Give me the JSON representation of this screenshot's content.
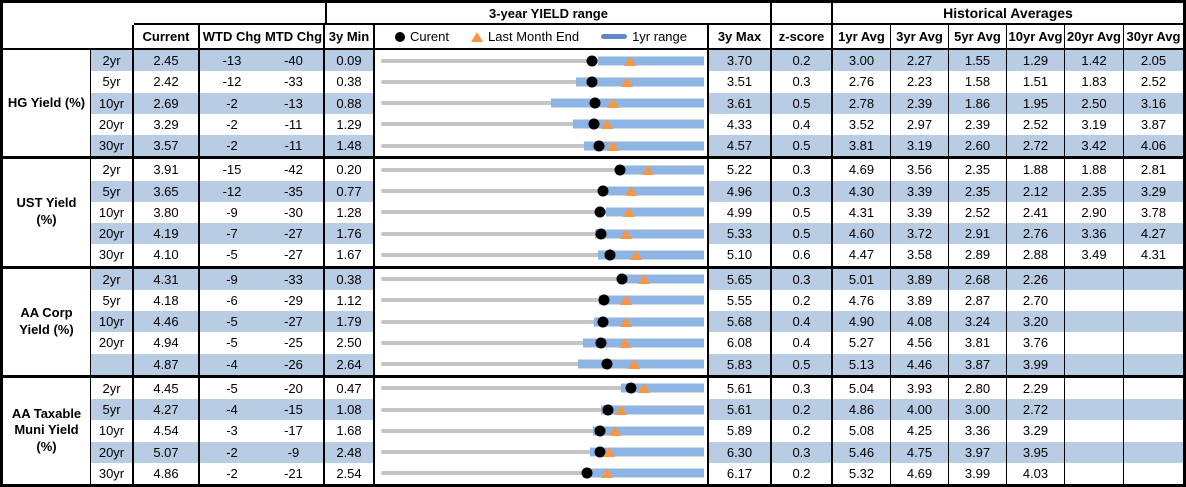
{
  "chart_data": {
    "type": "table",
    "title": "3-year YIELD range",
    "hist_title": "Historical Averages",
    "legend": {
      "current": "Curent",
      "last_month": "Last Month End",
      "range": "1yr range"
    },
    "columns": {
      "current": "Current",
      "wtd": "WTD Chg",
      "mtd": "MTD Chg",
      "min": "3y Min",
      "max": "3y Max",
      "z": "z-score",
      "avgs": [
        "1yr Avg",
        "3yr Avg",
        "5yr Avg",
        "10yr Avg",
        "20yr Avg",
        "30yr Avg"
      ]
    },
    "colors": {
      "row_shade": "#B8CCE4",
      "bar_blue": "#8EB4E3",
      "legend_bar_blue": "#5B8AC6",
      "marker_orange": "#F79646",
      "track_gray": "#C4C4C4",
      "dot_black": "#000000"
    },
    "sections": [
      {
        "label": "HG Yield (%)",
        "rows": [
          {
            "tenor": "2yr",
            "current": 2.45,
            "wtd": -13,
            "mtd": -40,
            "min": 0.09,
            "max": 3.7,
            "z": "0.2",
            "lme": 2.87,
            "yr_lo": 2.52,
            "yr_hi": 3.7,
            "avgs": [
              "3.00",
              "2.27",
              "1.55",
              "1.29",
              "1.42",
              "2.05"
            ]
          },
          {
            "tenor": "5yr",
            "current": 2.42,
            "wtd": -12,
            "mtd": -33,
            "min": 0.38,
            "max": 3.51,
            "z": "0.3",
            "lme": 2.76,
            "yr_lo": 2.27,
            "yr_hi": 3.51,
            "avgs": [
              "2.76",
              "2.23",
              "1.58",
              "1.51",
              "1.83",
              "2.52"
            ]
          },
          {
            "tenor": "10yr",
            "current": 2.69,
            "wtd": -2,
            "mtd": -13,
            "min": 0.88,
            "max": 3.61,
            "z": "0.5",
            "lme": 2.84,
            "yr_lo": 2.32,
            "yr_hi": 3.61,
            "avgs": [
              "2.78",
              "2.39",
              "1.86",
              "1.95",
              "2.50",
              "3.16"
            ]
          },
          {
            "tenor": "20yr",
            "current": 3.29,
            "wtd": -2,
            "mtd": -11,
            "min": 1.29,
            "max": 4.33,
            "z": "0.4",
            "lme": 3.42,
            "yr_lo": 3.1,
            "yr_hi": 4.33,
            "avgs": [
              "3.52",
              "2.97",
              "2.39",
              "2.52",
              "3.19",
              "3.87"
            ]
          },
          {
            "tenor": "30yr",
            "current": 3.57,
            "wtd": -2,
            "mtd": -11,
            "min": 1.48,
            "max": 4.57,
            "z": "0.5",
            "lme": 3.7,
            "yr_lo": 3.42,
            "yr_hi": 4.57,
            "avgs": [
              "3.81",
              "3.19",
              "2.60",
              "2.72",
              "3.42",
              "4.06"
            ]
          }
        ]
      },
      {
        "label": "UST Yield (%)",
        "rows": [
          {
            "tenor": "2yr",
            "current": 3.91,
            "wtd": -15,
            "mtd": -42,
            "min": 0.2,
            "max": 5.22,
            "z": "0.3",
            "lme": 4.35,
            "yr_lo": 3.86,
            "yr_hi": 5.22,
            "avgs": [
              "4.69",
              "3.56",
              "2.35",
              "1.88",
              "1.88",
              "2.81"
            ]
          },
          {
            "tenor": "5yr",
            "current": 3.65,
            "wtd": -12,
            "mtd": -35,
            "min": 0.77,
            "max": 4.96,
            "z": "0.3",
            "lme": 4.01,
            "yr_lo": 3.7,
            "yr_hi": 4.96,
            "avgs": [
              "4.30",
              "3.39",
              "2.35",
              "2.12",
              "2.35",
              "3.29"
            ]
          },
          {
            "tenor": "10yr",
            "current": 3.8,
            "wtd": -9,
            "mtd": -30,
            "min": 1.28,
            "max": 4.99,
            "z": "0.5",
            "lme": 4.13,
            "yr_lo": 3.86,
            "yr_hi": 4.99,
            "avgs": [
              "4.31",
              "3.39",
              "2.52",
              "2.41",
              "2.90",
              "3.78"
            ]
          },
          {
            "tenor": "20yr",
            "current": 4.19,
            "wtd": -7,
            "mtd": -27,
            "min": 1.76,
            "max": 5.33,
            "z": "0.5",
            "lme": 4.47,
            "yr_lo": 4.12,
            "yr_hi": 5.33,
            "avgs": [
              "4.60",
              "3.72",
              "2.91",
              "2.76",
              "3.36",
              "4.27"
            ]
          },
          {
            "tenor": "30yr",
            "current": 4.1,
            "wtd": -5,
            "mtd": -27,
            "min": 1.67,
            "max": 5.1,
            "z": "0.6",
            "lme": 4.38,
            "yr_lo": 3.97,
            "yr_hi": 5.1,
            "avgs": [
              "4.47",
              "3.58",
              "2.89",
              "2.88",
              "3.49",
              "4.31"
            ]
          }
        ]
      },
      {
        "label": "AA Corp Yield (%)",
        "rows": [
          {
            "tenor": "2yr",
            "current": 4.31,
            "wtd": -9,
            "mtd": -33,
            "min": 0.38,
            "max": 5.65,
            "z": "0.3",
            "lme": 4.67,
            "yr_lo": 4.25,
            "yr_hi": 5.65,
            "avgs": [
              "5.01",
              "3.89",
              "2.68",
              "2.26",
              "",
              ""
            ]
          },
          {
            "tenor": "5yr",
            "current": 4.18,
            "wtd": -6,
            "mtd": -29,
            "min": 1.12,
            "max": 5.55,
            "z": "0.2",
            "lme": 4.48,
            "yr_lo": 4.11,
            "yr_hi": 5.55,
            "avgs": [
              "4.76",
              "3.89",
              "2.87",
              "2.70",
              "",
              ""
            ]
          },
          {
            "tenor": "10yr",
            "current": 4.46,
            "wtd": -5,
            "mtd": -27,
            "min": 1.79,
            "max": 5.68,
            "z": "0.4",
            "lme": 4.74,
            "yr_lo": 4.35,
            "yr_hi": 5.68,
            "avgs": [
              "4.90",
              "4.08",
              "3.24",
              "3.20",
              "",
              ""
            ]
          },
          {
            "tenor": "20yr",
            "current": 4.94,
            "wtd": -5,
            "mtd": -25,
            "min": 2.5,
            "max": 6.08,
            "z": "0.4",
            "lme": 5.2,
            "yr_lo": 4.74,
            "yr_hi": 6.08,
            "avgs": [
              "5.27",
              "4.56",
              "3.81",
              "3.76",
              "",
              ""
            ]
          },
          {
            "tenor": "",
            "current": 4.87,
            "wtd": -4,
            "mtd": -26,
            "min": 2.64,
            "max": 5.83,
            "z": "0.5",
            "lme": 5.14,
            "yr_lo": 4.59,
            "yr_hi": 5.83,
            "avgs": [
              "5.13",
              "4.46",
              "3.87",
              "3.99",
              "",
              ""
            ]
          }
        ]
      },
      {
        "label": "AA Taxable Muni Yield (%)",
        "rows": [
          {
            "tenor": "2yr",
            "current": 4.45,
            "wtd": -5,
            "mtd": -20,
            "min": 0.47,
            "max": 5.61,
            "z": "0.3",
            "lme": 4.66,
            "yr_lo": 4.29,
            "yr_hi": 5.61,
            "avgs": [
              "5.04",
              "3.93",
              "2.80",
              "2.29",
              "",
              ""
            ]
          },
          {
            "tenor": "5yr",
            "current": 4.27,
            "wtd": -4,
            "mtd": -15,
            "min": 1.08,
            "max": 5.61,
            "z": "0.2",
            "lme": 4.45,
            "yr_lo": 4.16,
            "yr_hi": 5.61,
            "avgs": [
              "4.86",
              "4.00",
              "3.00",
              "2.72",
              "",
              ""
            ]
          },
          {
            "tenor": "10yr",
            "current": 4.54,
            "wtd": -3,
            "mtd": -17,
            "min": 1.68,
            "max": 5.89,
            "z": "0.2",
            "lme": 4.73,
            "yr_lo": 4.44,
            "yr_hi": 5.89,
            "avgs": [
              "5.08",
              "4.25",
              "3.36",
              "3.29",
              "",
              ""
            ]
          },
          {
            "tenor": "20yr",
            "current": 5.07,
            "wtd": -2,
            "mtd": -9,
            "min": 2.48,
            "max": 6.3,
            "z": "0.3",
            "lme": 5.18,
            "yr_lo": 4.95,
            "yr_hi": 6.3,
            "avgs": [
              "5.46",
              "4.75",
              "3.97",
              "3.95",
              "",
              ""
            ]
          },
          {
            "tenor": "30yr",
            "current": 4.86,
            "wtd": -2,
            "mtd": -21,
            "min": 2.54,
            "max": 6.17,
            "z": "0.2",
            "lme": 5.08,
            "yr_lo": 4.81,
            "yr_hi": 6.17,
            "avgs": [
              "5.32",
              "4.69",
              "3.99",
              "4.03",
              "",
              ""
            ]
          }
        ]
      }
    ]
  }
}
